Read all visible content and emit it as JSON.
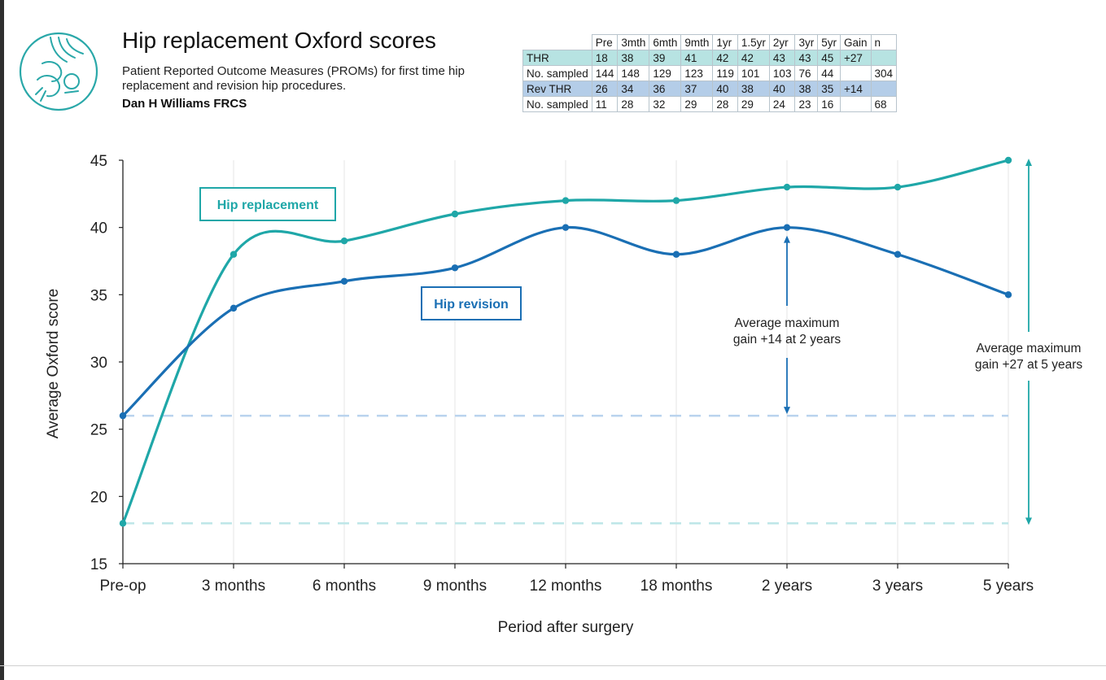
{
  "header": {
    "title": "Hip replacement Oxford scores",
    "subtitle": "Patient Reported Outcome Measures (PROMs) for first time hip replacement and revision hip procedures.",
    "author": "Dan H Williams FRCS"
  },
  "table": {
    "columns": [
      "Pre",
      "3mth",
      "6mth",
      "9mth",
      "1yr",
      "1.5yr",
      "2yr",
      "3yr",
      "5yr",
      "Gain",
      "n"
    ],
    "rows": [
      {
        "label": "THR",
        "cells": [
          "18",
          "38",
          "39",
          "41",
          "42",
          "42",
          "43",
          "43",
          "45",
          "+27",
          ""
        ]
      },
      {
        "label": "No. sampled",
        "cells": [
          "144",
          "148",
          "129",
          "123",
          "119",
          "101",
          "103",
          "76",
          "44",
          "",
          "304"
        ]
      },
      {
        "label": "Rev THR",
        "cells": [
          "26",
          "34",
          "36",
          "37",
          "40",
          "38",
          "40",
          "38",
          "35",
          "+14",
          ""
        ]
      },
      {
        "label": "No. sampled",
        "cells": [
          "11",
          "28",
          "32",
          "29",
          "28",
          "29",
          "24",
          "23",
          "16",
          "",
          "68"
        ]
      }
    ]
  },
  "colors": {
    "replacement": "#1fa7a8",
    "revision": "#1a6fb4",
    "replacement_dash": "#bde6e8",
    "revision_dash": "#b9d3ee",
    "axis": "#222222",
    "grid": "#e6e6e6"
  },
  "icons": {
    "logo": "hip-joint-logo-icon"
  },
  "chart_data": {
    "type": "line",
    "xlabel": "Period after surgery",
    "ylabel": "Average Oxford score",
    "categories": [
      "Pre-op",
      "3 months",
      "6 months",
      "9 months",
      "12 months",
      "18 months",
      "2 years",
      "3 years",
      "5 years"
    ],
    "ylim": [
      15,
      45
    ],
    "yticks": [
      15,
      20,
      25,
      30,
      35,
      40,
      45
    ],
    "grid": "vertical",
    "series": [
      {
        "name": "Hip replacement",
        "values": [
          18,
          38,
          39,
          41,
          42,
          42,
          43,
          43,
          45
        ]
      },
      {
        "name": "Hip revision",
        "values": [
          26,
          34,
          36,
          37,
          40,
          38,
          40,
          38,
          35
        ]
      }
    ],
    "reference_lines": [
      26,
      18
    ],
    "annotations": [
      {
        "text": "Average maximum gain +14 at 2 years",
        "from": 26,
        "to": 40,
        "category": "2 years"
      },
      {
        "text": "Average maximum gain +27 at 5 years",
        "from": 18,
        "to": 45,
        "category": "5 years"
      }
    ]
  }
}
